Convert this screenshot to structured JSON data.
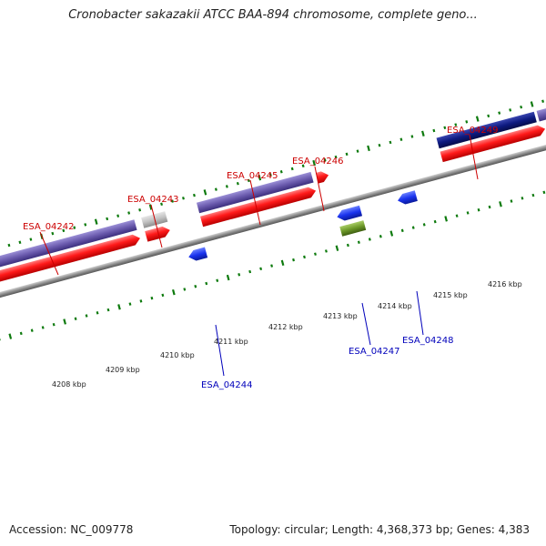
{
  "title": "Cronobacter sakazakii ATCC BAA-894 chromosome, complete geno...",
  "footer": {
    "accession": "Accession: NC_009778",
    "summary": "Topology: circular; Length: 4,368,373 bp; Genes: 4,383"
  },
  "colors": {
    "forward_label": "#cc0000",
    "reverse_label": "#0000bb",
    "cds_red": "#ff1a1a",
    "gene_purple": "#6a5aad",
    "gene_navy": "#0d1a80",
    "gene_grey": "#bdbdbd",
    "gene_blue": "#1a33ee",
    "gene_green": "#6e9a2a",
    "tick_green": "#0d7a0d",
    "backbone": "#8c8c8c"
  },
  "scale_labels": [
    "4208 kbp",
    "4209 kbp",
    "4210 kbp",
    "4211 kbp",
    "4212 kbp",
    "4213 kbp",
    "4214 kbp",
    "4215 kbp",
    "4216 kbp"
  ],
  "forward_genes": [
    {
      "name": "ESA_04242"
    },
    {
      "name": "ESA_04243"
    },
    {
      "name": "ESA_04245"
    },
    {
      "name": "ESA_04246"
    },
    {
      "name": "ESA_04249"
    }
  ],
  "reverse_genes": [
    {
      "name": "ESA_04244"
    },
    {
      "name": "ESA_04247"
    },
    {
      "name": "ESA_04248"
    }
  ]
}
